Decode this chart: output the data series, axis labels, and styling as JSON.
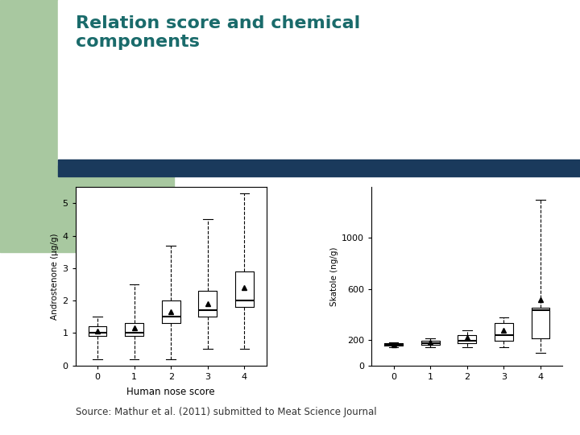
{
  "title": "Relation score and chemical\ncomponents",
  "title_color": "#1a6b6b",
  "source_text": "Source: Mathur et al. (2011) submitted to Meat Science Journal",
  "bg_color": "#ffffff",
  "header_bar_color": "#1a3a5c",
  "left_bg_color": "#a8c8a0",
  "plot1": {
    "ylabel": "Androstenone (µg/g)",
    "xlabel": "Human nose score",
    "categories": [
      0,
      1,
      2,
      3,
      4
    ],
    "whislo": [
      0.2,
      0.2,
      0.2,
      0.5,
      0.5
    ],
    "q1": [
      0.9,
      0.9,
      1.3,
      1.5,
      1.8
    ],
    "median": [
      1.0,
      1.0,
      1.5,
      1.7,
      2.0
    ],
    "q3": [
      1.2,
      1.3,
      2.0,
      2.3,
      2.9
    ],
    "whishi": [
      1.5,
      2.5,
      3.7,
      4.5,
      5.3
    ],
    "mean": [
      1.05,
      1.15,
      1.65,
      1.9,
      2.4
    ],
    "ylim": [
      0,
      5.5
    ],
    "yticks": [
      0,
      1,
      2,
      3,
      4,
      5
    ]
  },
  "plot2": {
    "ylabel": "Skatole (ng/g)",
    "xlabel": "",
    "categories": [
      0,
      1,
      2,
      3,
      4
    ],
    "whislo": [
      140,
      140,
      140,
      140,
      100
    ],
    "q1": [
      155,
      160,
      175,
      195,
      215
    ],
    "median": [
      163,
      172,
      195,
      235,
      435
    ],
    "q3": [
      172,
      195,
      235,
      335,
      455
    ],
    "whishi": [
      182,
      215,
      275,
      375,
      1300
    ],
    "mean": [
      163,
      183,
      220,
      275,
      515
    ],
    "ylim": [
      0,
      1400
    ],
    "yticks": [
      0,
      200,
      600,
      1000
    ]
  }
}
